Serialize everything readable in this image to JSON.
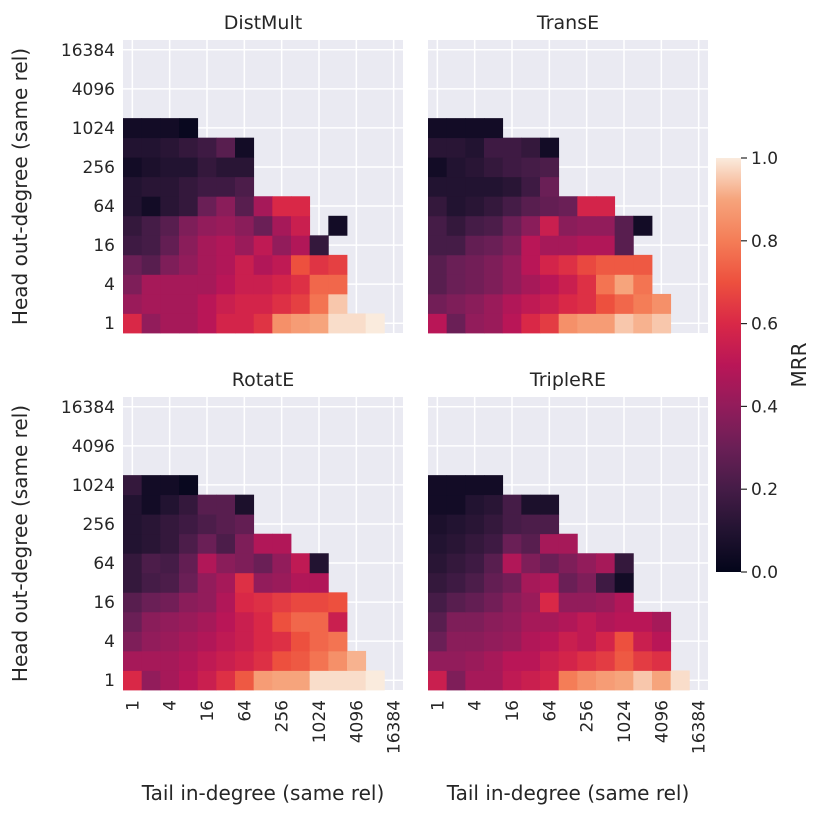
{
  "chart_data": {
    "type": "heatmap",
    "xlabel": "Tail in-degree (same rel)",
    "ylabel": "Head out-degree (same rel)",
    "x_ticks": [
      "1",
      "4",
      "16",
      "64",
      "256",
      "1024",
      "4096",
      "16384"
    ],
    "y_ticks": [
      "1",
      "4",
      "16",
      "64",
      "256",
      "1024",
      "4096",
      "16384"
    ],
    "x_bins_log2": [
      0,
      15
    ],
    "y_bins_log2": [
      0,
      15
    ],
    "colorbar": {
      "label": "MRR",
      "range": [
        0.0,
        1.0
      ],
      "ticks": [
        "0.0",
        "0.2",
        "0.4",
        "0.6",
        "0.8",
        "1.0"
      ]
    },
    "panels": [
      {
        "title": "DistMult",
        "rows": [
          [
            0.6,
            0.4,
            0.45,
            0.45,
            0.5,
            0.58,
            0.58,
            0.63,
            0.85,
            0.88,
            0.9,
            0.98,
            0.98,
            1.0
          ],
          [
            0.42,
            0.45,
            0.45,
            0.45,
            0.5,
            0.55,
            0.58,
            0.58,
            0.62,
            0.66,
            0.78,
            0.95
          ],
          [
            0.35,
            0.45,
            0.45,
            0.45,
            0.45,
            0.5,
            0.55,
            0.55,
            0.58,
            0.62,
            0.75,
            0.75
          ],
          [
            0.3,
            0.25,
            0.35,
            0.4,
            0.45,
            0.48,
            0.55,
            0.48,
            0.52,
            0.7,
            0.63,
            0.66
          ],
          [
            0.18,
            0.2,
            0.28,
            0.38,
            0.45,
            0.48,
            0.42,
            0.52,
            0.4,
            0.48,
            0.15
          ],
          [
            0.15,
            0.2,
            0.25,
            0.35,
            0.4,
            0.42,
            0.38,
            0.3,
            0.45,
            0.55,
            null,
            0.05
          ],
          [
            0.1,
            0.05,
            0.12,
            0.15,
            0.3,
            0.38,
            0.25,
            0.45,
            0.6,
            0.6
          ],
          [
            0.1,
            0.12,
            0.12,
            0.15,
            0.18,
            0.18,
            0.22
          ],
          [
            0.05,
            0.08,
            0.1,
            0.1,
            0.15,
            0.12,
            0.12
          ],
          [
            0.1,
            0.1,
            0.12,
            0.15,
            0.18,
            0.25,
            0.05
          ],
          [
            0.05,
            0.05,
            0.05,
            0.02
          ]
        ]
      },
      {
        "title": "TransE",
        "rows": [
          [
            0.5,
            0.3,
            0.4,
            0.42,
            0.5,
            0.6,
            0.65,
            0.85,
            0.88,
            0.88,
            0.95,
            0.92,
            0.95
          ],
          [
            0.32,
            0.35,
            0.38,
            0.42,
            0.48,
            0.52,
            0.55,
            0.6,
            0.62,
            0.7,
            0.75,
            0.8,
            0.85
          ],
          [
            0.25,
            0.3,
            0.32,
            0.35,
            0.4,
            0.45,
            0.5,
            0.55,
            0.62,
            0.78,
            0.9,
            0.78
          ],
          [
            0.25,
            0.3,
            0.32,
            0.35,
            0.4,
            0.5,
            0.58,
            0.62,
            0.68,
            0.72,
            0.72,
            0.72
          ],
          [
            0.2,
            0.2,
            0.28,
            0.3,
            0.35,
            0.5,
            0.45,
            0.45,
            0.48,
            0.48,
            0.25
          ],
          [
            0.2,
            0.15,
            0.2,
            0.22,
            0.3,
            0.38,
            0.55,
            0.38,
            0.4,
            0.4,
            0.25,
            0.05
          ],
          [
            0.15,
            0.1,
            0.12,
            0.15,
            0.2,
            0.25,
            0.28,
            0.3,
            0.58,
            0.58
          ],
          [
            0.1,
            0.1,
            0.1,
            0.1,
            0.12,
            0.18,
            0.3
          ],
          [
            0.05,
            0.1,
            0.12,
            0.15,
            0.18,
            0.2,
            0.22
          ],
          [
            0.12,
            0.12,
            0.1,
            0.18,
            0.18,
            0.15,
            0.05
          ],
          [
            0.05,
            0.05,
            0.05,
            0.05
          ]
        ]
      },
      {
        "title": "RotatE",
        "rows": [
          [
            0.6,
            0.4,
            0.45,
            0.5,
            0.55,
            0.62,
            0.72,
            0.88,
            0.9,
            0.9,
            0.98,
            0.98,
            0.98,
            1.0
          ],
          [
            0.45,
            0.45,
            0.45,
            0.48,
            0.52,
            0.55,
            0.58,
            0.62,
            0.7,
            0.72,
            0.78,
            0.85,
            0.92
          ],
          [
            0.35,
            0.4,
            0.42,
            0.45,
            0.48,
            0.52,
            0.55,
            0.6,
            0.62,
            0.7,
            0.75,
            0.78
          ],
          [
            0.3,
            0.38,
            0.4,
            0.42,
            0.45,
            0.5,
            0.55,
            0.6,
            0.7,
            0.75,
            0.75,
            0.55
          ],
          [
            0.25,
            0.3,
            0.32,
            0.38,
            0.4,
            0.48,
            0.6,
            0.62,
            0.65,
            0.68,
            0.68,
            0.7
          ],
          [
            0.15,
            0.2,
            0.22,
            0.3,
            0.4,
            0.45,
            0.62,
            0.4,
            0.42,
            0.48,
            0.48
          ],
          [
            0.15,
            0.22,
            0.2,
            0.28,
            0.48,
            0.38,
            0.35,
            0.3,
            0.4,
            0.52,
            0.1
          ],
          [
            0.1,
            0.12,
            0.15,
            0.22,
            0.3,
            0.22,
            0.35,
            0.48,
            0.48
          ],
          [
            0.1,
            0.12,
            0.15,
            0.18,
            0.22,
            0.25,
            0.28
          ],
          [
            0.1,
            0.05,
            0.1,
            0.15,
            0.25,
            0.25,
            0.08
          ],
          [
            0.15,
            0.05,
            0.05,
            0.02
          ]
        ]
      },
      {
        "title": "TripleRE",
        "rows": [
          [
            0.55,
            0.35,
            0.45,
            0.45,
            0.52,
            0.55,
            0.58,
            0.8,
            0.85,
            0.88,
            0.9,
            0.95,
            0.9,
            0.98
          ],
          [
            0.4,
            0.4,
            0.42,
            0.45,
            0.5,
            0.5,
            0.55,
            0.58,
            0.62,
            0.65,
            0.72,
            0.65,
            0.62
          ],
          [
            0.3,
            0.38,
            0.38,
            0.4,
            0.42,
            0.48,
            0.5,
            0.55,
            0.52,
            0.58,
            0.7,
            0.55,
            0.5
          ],
          [
            0.25,
            0.35,
            0.35,
            0.38,
            0.4,
            0.45,
            0.45,
            0.48,
            0.52,
            0.48,
            0.5,
            0.5,
            0.45
          ],
          [
            0.2,
            0.25,
            0.28,
            0.32,
            0.38,
            0.42,
            0.6,
            0.4,
            0.4,
            0.42,
            0.48
          ],
          [
            0.15,
            0.18,
            0.22,
            0.28,
            0.32,
            0.45,
            0.48,
            0.3,
            0.35,
            0.18,
            0.05
          ],
          [
            0.12,
            0.15,
            0.18,
            0.25,
            0.48,
            0.35,
            0.3,
            0.35,
            0.4,
            0.45,
            0.15
          ],
          [
            0.1,
            0.12,
            0.15,
            0.18,
            0.3,
            0.25,
            0.45,
            0.45
          ],
          [
            0.08,
            0.1,
            0.12,
            0.15,
            0.2,
            0.22,
            0.22
          ],
          [
            0.05,
            0.05,
            0.1,
            0.12,
            0.2,
            0.08,
            0.08
          ],
          [
            0.05,
            0.05,
            0.05,
            0.05
          ]
        ]
      }
    ]
  }
}
